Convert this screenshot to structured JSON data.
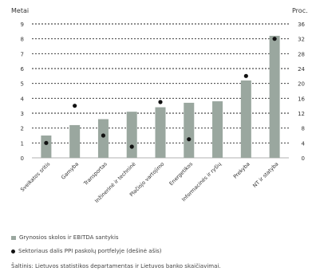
{
  "chart_data": {
    "type": "bar",
    "left_axis_label": "Metai",
    "right_axis_label": "Proc.",
    "left_ticks": [
      0,
      1,
      2,
      3,
      4,
      5,
      6,
      7,
      8,
      9
    ],
    "right_ticks": [
      0,
      4,
      8,
      12,
      16,
      20,
      24,
      28,
      32,
      36
    ],
    "ylim_left": [
      0,
      9
    ],
    "ylim_right": [
      0,
      36
    ],
    "grid": "dotted horizontal",
    "categories": [
      "Sveikatos sritis",
      "Gamyba",
      "Transportas",
      "Inžinerinė ir techninė",
      "Plačiojo vartojimo",
      "Energetikos",
      "Informacinės ir ryšių",
      "Prekyba",
      "NT ir statyba"
    ],
    "series": [
      {
        "name": "Grynosios skolos ir EBITDA santykis",
        "axis": "left",
        "style": "bar",
        "values": [
          1.5,
          2.2,
          2.6,
          3.1,
          3.4,
          3.7,
          3.8,
          5.2,
          8.2
        ]
      },
      {
        "name": "Sektoriaus dalis PPI paskolų portfelyje (dešinė ašis)",
        "axis": "right",
        "style": "dot",
        "values": [
          4,
          14,
          6,
          3,
          15,
          5,
          null,
          22,
          32
        ]
      }
    ],
    "colors": {
      "bar": "#9aa79f",
      "dot": "#111111",
      "grid": "#222222",
      "text": "#333333"
    }
  },
  "legend": {
    "bar_label": "Grynosios skolos ir EBITDA santykis",
    "dot_label": "Sektoriaus dalis PPI paskolų portfelyje (dešinė ašis)"
  },
  "source": "Šaltinis: Lietuvos statistikos departamentas ir Lietuvos banko skaičiavimai."
}
